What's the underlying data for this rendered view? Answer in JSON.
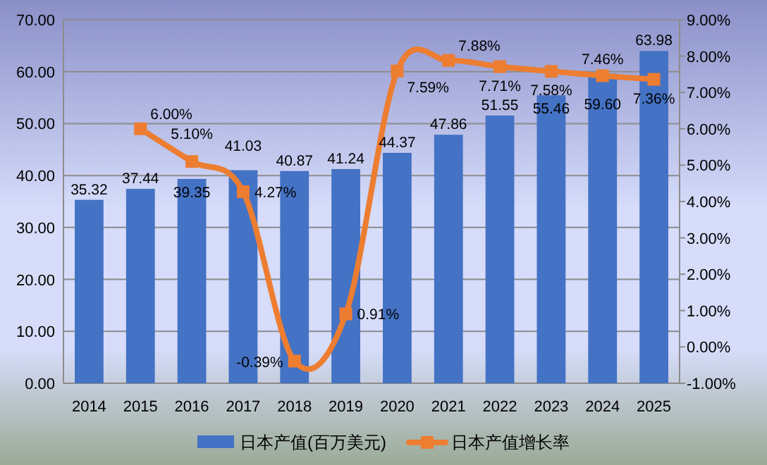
{
  "chart_data": {
    "type": "bar",
    "categories": [
      "2014",
      "2015",
      "2016",
      "2017",
      "2018",
      "2019",
      "2020",
      "2021",
      "2022",
      "2023",
      "2024",
      "2025"
    ],
    "series": [
      {
        "name": "日本产值(百万美元)",
        "color": "#4472c4",
        "values": [
          35.32,
          37.44,
          39.35,
          41.03,
          40.87,
          41.24,
          44.37,
          47.86,
          51.55,
          55.46,
          59.6,
          63.98
        ],
        "value_labels": [
          "35.32",
          "37.44",
          "39.35",
          "41.03",
          "40.87",
          "41.24",
          "44.37",
          "47.86",
          "51.55",
          "55.46",
          "59.60",
          "63.98"
        ]
      },
      {
        "name": "日本产值增长率",
        "type": "line",
        "axis": "y2",
        "color": "#ed7d31",
        "marker": "square",
        "values": [
          null,
          6.0,
          5.1,
          4.27,
          -0.39,
          0.91,
          7.59,
          7.88,
          7.71,
          7.58,
          7.46,
          7.36
        ],
        "value_labels": [
          null,
          "6.00%",
          "5.10%",
          "4.27%",
          "-0.39%",
          "0.91%",
          "7.59%",
          "7.88%",
          "7.71%",
          "7.58%",
          "7.46%",
          "7.36%"
        ]
      }
    ],
    "ylim": [
      0,
      70
    ],
    "yticks": [
      {
        "value": 0,
        "label": "0.00"
      },
      {
        "value": 10,
        "label": "10.00"
      },
      {
        "value": 20,
        "label": "20.00"
      },
      {
        "value": 30,
        "label": "30.00"
      },
      {
        "value": 40,
        "label": "40.00"
      },
      {
        "value": 50,
        "label": "50.00"
      },
      {
        "value": 60,
        "label": "60.00"
      },
      {
        "value": 70,
        "label": "70.00"
      }
    ],
    "y2lim": [
      -1,
      9
    ],
    "y2ticks": [
      {
        "value": -1,
        "label": "-1.00%"
      },
      {
        "value": 0,
        "label": "0.00%"
      },
      {
        "value": 1,
        "label": "1.00%"
      },
      {
        "value": 2,
        "label": "2.00%"
      },
      {
        "value": 3,
        "label": "3.00%"
      },
      {
        "value": 4,
        "label": "4.00%"
      },
      {
        "value": 5,
        "label": "5.00%"
      },
      {
        "value": 6,
        "label": "6.00%"
      },
      {
        "value": 7,
        "label": "7.00%"
      },
      {
        "value": 8,
        "label": "8.00%"
      },
      {
        "value": 9,
        "label": "9.00%"
      }
    ],
    "grid": "y",
    "legend": "bottom"
  }
}
